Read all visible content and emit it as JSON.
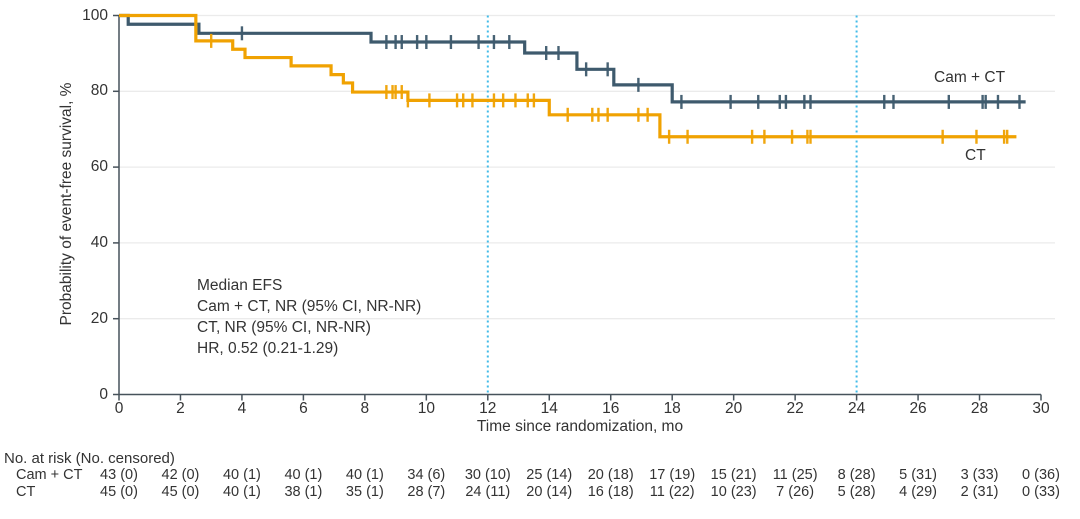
{
  "annotation": {
    "lines": [
      "Median EFS",
      "Cam + CT, NR (95% CI, NR-NR)",
      "CT, NR (95% CI, NR-NR)",
      "HR, 0.52 (0.21-1.29)"
    ]
  },
  "chart_data": {
    "type": "line",
    "subtype": "kaplan-meier-step",
    "title": "",
    "xlabel": "Time since randomization, mo",
    "ylabel": "Probability of event-free survival, %",
    "xlim": [
      0,
      30
    ],
    "ylim": [
      0,
      100
    ],
    "x_ticks": [
      0,
      2,
      4,
      6,
      8,
      10,
      12,
      14,
      16,
      18,
      20,
      22,
      24,
      26,
      28,
      30
    ],
    "y_ticks": [
      0,
      20,
      40,
      60,
      80,
      100
    ],
    "y_gridlines": [
      20,
      40,
      60,
      80,
      100
    ],
    "reference_lines_x": [
      12,
      24
    ],
    "legend_position": "on-curve-right",
    "colors": {
      "cam_ct": "#3E5A6D",
      "ct": "#F0A202",
      "reference_line": "#41BBE8",
      "grid": "#EBEBEB",
      "axis": "#47525B"
    },
    "series": [
      {
        "name": "Cam + CT",
        "color": "#3E5A6D",
        "steps": [
          [
            0,
            100
          ],
          [
            0.3,
            97.7
          ],
          [
            2.6,
            95.3
          ],
          [
            8.2,
            93.0
          ],
          [
            13.2,
            90.1
          ],
          [
            14.9,
            85.8
          ],
          [
            16.1,
            81.7
          ],
          [
            18.0,
            77.2
          ],
          [
            29.5,
            77.2
          ]
        ],
        "censor_ticks": [
          4.0,
          8.7,
          9.0,
          9.2,
          9.7,
          10.0,
          10.8,
          11.7,
          12.2,
          12.7,
          13.9,
          14.3,
          15.2,
          15.9,
          16.9,
          18.3,
          19.9,
          20.8,
          21.5,
          21.7,
          22.3,
          22.5,
          24.9,
          25.2,
          27.0,
          28.1,
          28.2,
          28.6,
          29.3
        ],
        "label_xy": [
          26.5,
          81.5
        ]
      },
      {
        "name": "CT",
        "color": "#F0A202",
        "steps": [
          [
            0,
            100
          ],
          [
            2.5,
            93.3
          ],
          [
            3.7,
            91.1
          ],
          [
            4.1,
            88.9
          ],
          [
            5.6,
            86.7
          ],
          [
            6.9,
            84.4
          ],
          [
            7.3,
            82.2
          ],
          [
            7.6,
            79.8
          ],
          [
            9.4,
            77.6
          ],
          [
            14.0,
            73.8
          ],
          [
            17.6,
            68.0
          ],
          [
            29.2,
            68.0
          ]
        ],
        "censor_ticks": [
          3.0,
          8.7,
          8.9,
          9.0,
          9.2,
          9.4,
          10.1,
          11.0,
          11.2,
          11.5,
          12.2,
          12.5,
          12.9,
          13.3,
          13.5,
          14.6,
          15.4,
          15.6,
          15.9,
          16.9,
          17.2,
          17.9,
          18.5,
          20.6,
          21.0,
          21.9,
          22.4,
          22.5,
          26.8,
          27.9,
          28.8,
          28.9
        ],
        "label_xy": [
          27.6,
          63.0
        ]
      }
    ],
    "risk_table": {
      "header": "No. at risk (No. censored)",
      "times": [
        0,
        2,
        4,
        6,
        8,
        10,
        12,
        14,
        16,
        18,
        20,
        22,
        24,
        26,
        28,
        30
      ],
      "rows": [
        {
          "name": "Cam + CT",
          "values": [
            "43 (0)",
            "42 (0)",
            "40 (1)",
            "40 (1)",
            "40 (1)",
            "34 (6)",
            "30 (10)",
            "25 (14)",
            "20 (18)",
            "17 (19)",
            "15 (21)",
            "11 (25)",
            "8 (28)",
            "5 (31)",
            "3 (33)",
            "0 (36)"
          ]
        },
        {
          "name": "CT",
          "values": [
            "45 (0)",
            "45 (0)",
            "40 (1)",
            "38 (1)",
            "35 (1)",
            "28 (7)",
            "24 (11)",
            "20 (14)",
            "16 (18)",
            "11 (22)",
            "10 (23)",
            "7 (26)",
            "5 (28)",
            "4 (29)",
            "2 (31)",
            "0 (33)"
          ]
        }
      ]
    }
  }
}
